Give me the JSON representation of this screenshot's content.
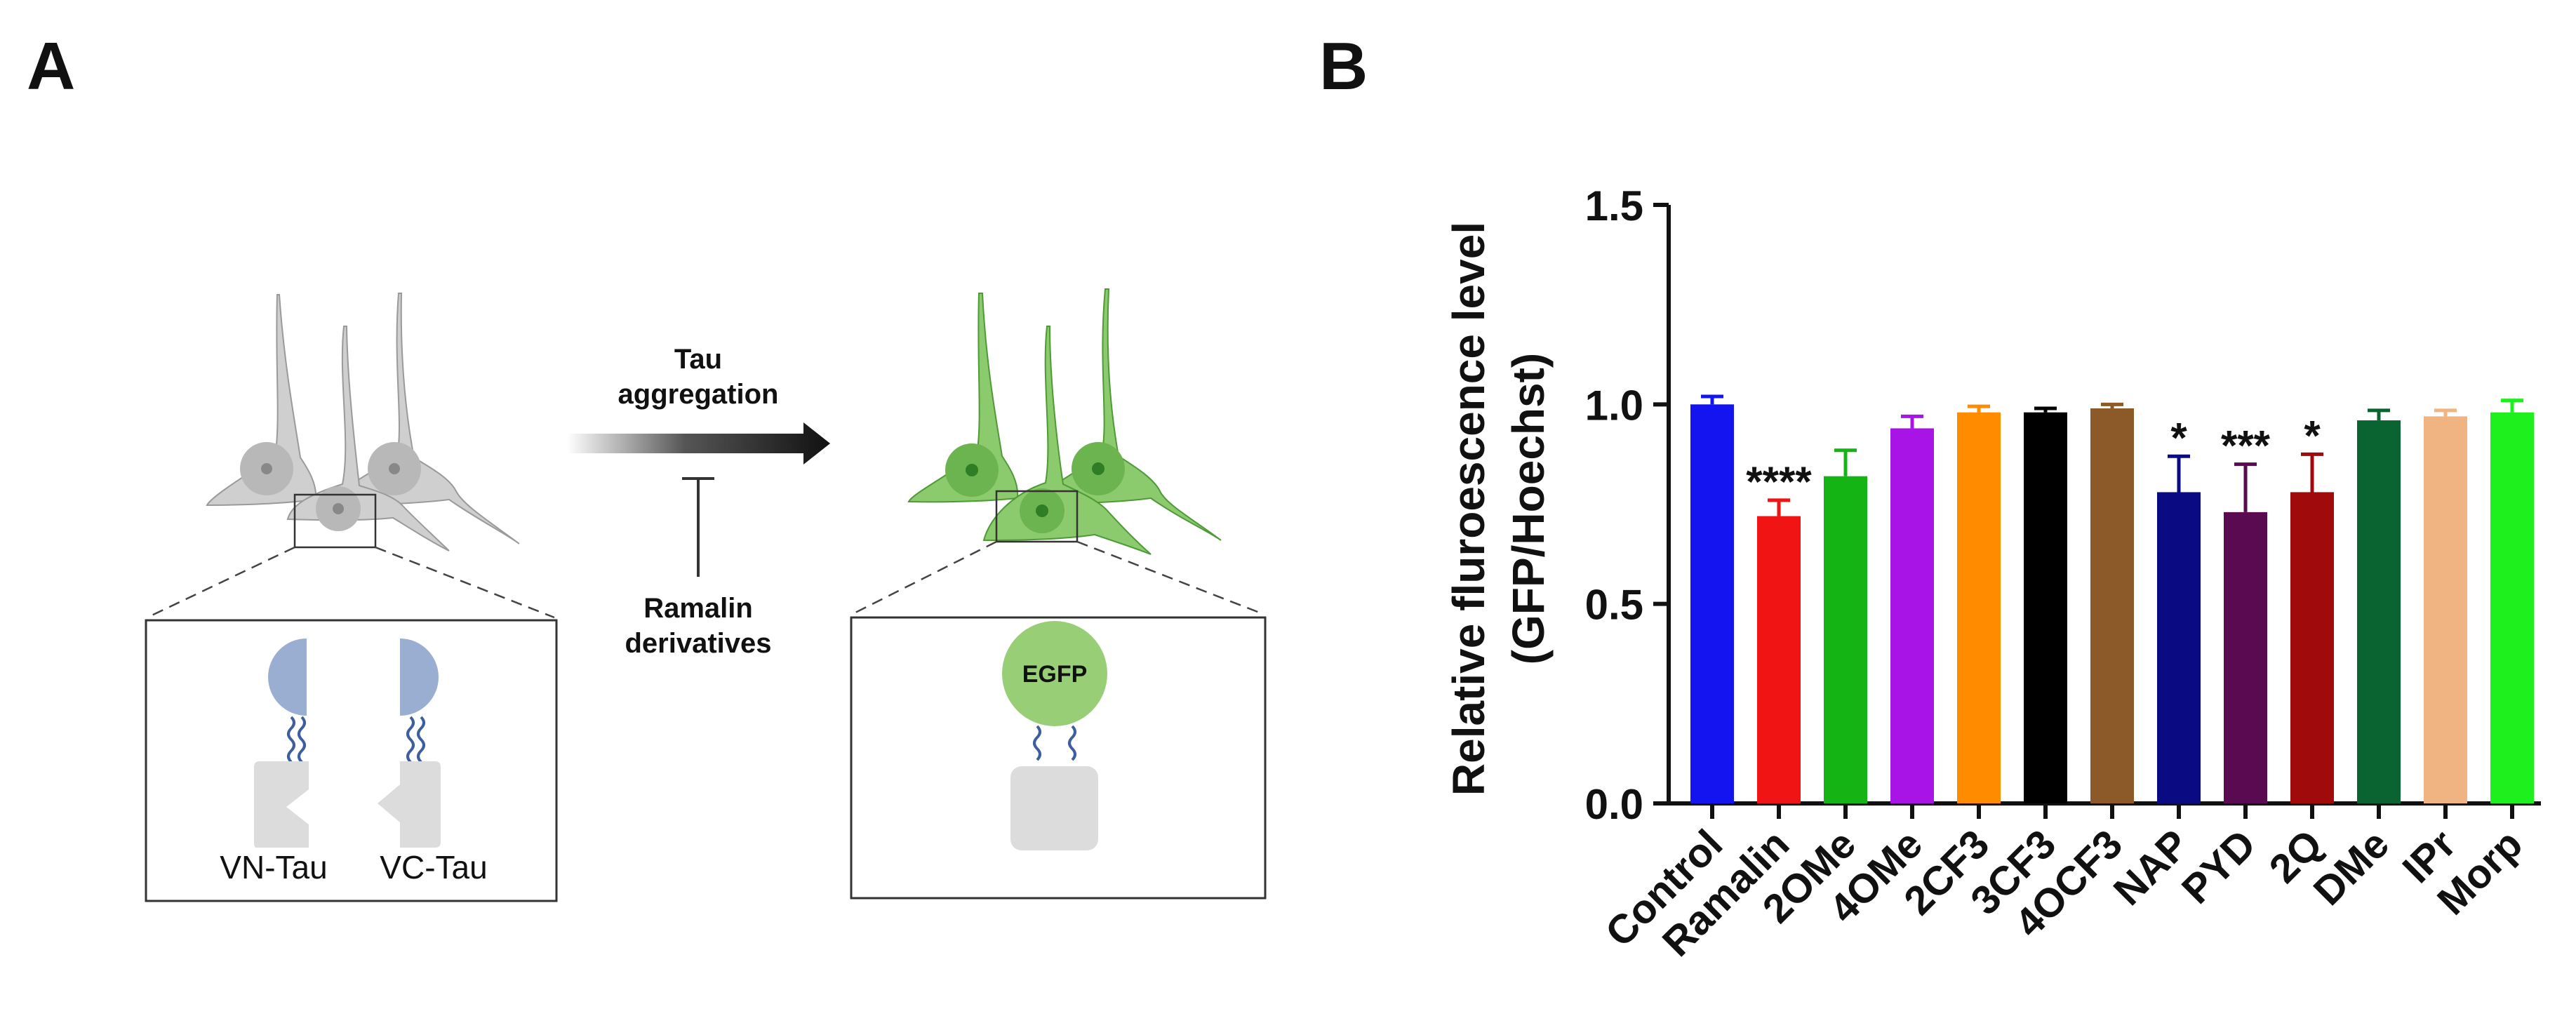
{
  "panel_a": {
    "letter": "A",
    "arrow_label_line1": "Tau",
    "arrow_label_line2": "aggregation",
    "inhibitor_line1": "Ramalin",
    "inhibitor_line2": "derivatives",
    "vn_label": "VN-Tau",
    "vc_label": "VC-Tau",
    "egfp_label": "EGFP",
    "colors": {
      "neuron_gray": "#cfcfcf",
      "neuron_green": "#8cca6e",
      "split_blue": "#9aaed2",
      "egfp_green": "#98cf76",
      "fragment_gray": "#dcdcdc"
    }
  },
  "panel_b": {
    "letter": "B"
  },
  "chart_data": {
    "type": "bar",
    "title": "",
    "xlabel": "",
    "ylabel_line1": "Relative fluroescence level",
    "ylabel_line2": "(GFP/Hoechst)",
    "ylim": [
      0,
      1.5
    ],
    "yticks": [
      "0.0",
      "0.5",
      "1.0",
      "1.5"
    ],
    "ytick_values": [
      0,
      0.5,
      1.0,
      1.5
    ],
    "grid": false,
    "categories": [
      "Control",
      "Ramalin",
      "2OMe",
      "4OMe",
      "2CF3",
      "3CF3",
      "4OCF3",
      "NAP",
      "PYD",
      "2Q",
      "DMe",
      "IPr",
      "Morp"
    ],
    "values": [
      1.0,
      0.72,
      0.82,
      0.94,
      0.98,
      0.98,
      0.99,
      0.78,
      0.73,
      0.78,
      0.96,
      0.97,
      0.98
    ],
    "errors": [
      0.02,
      0.04,
      0.065,
      0.03,
      0.015,
      0.01,
      0.01,
      0.09,
      0.12,
      0.095,
      0.025,
      0.015,
      0.03
    ],
    "significance": [
      "",
      "****",
      "",
      "",
      "",
      "",
      "",
      "*",
      "***",
      "*",
      "",
      "",
      ""
    ],
    "colors": [
      "#1414f0",
      "#f01414",
      "#14b414",
      "#a814e6",
      "#ff8c00",
      "#000000",
      "#8b5a28",
      "#0a0a82",
      "#5a0a50",
      "#a00a0a",
      "#0a6432",
      "#f0b482",
      "#1ef01e"
    ]
  }
}
